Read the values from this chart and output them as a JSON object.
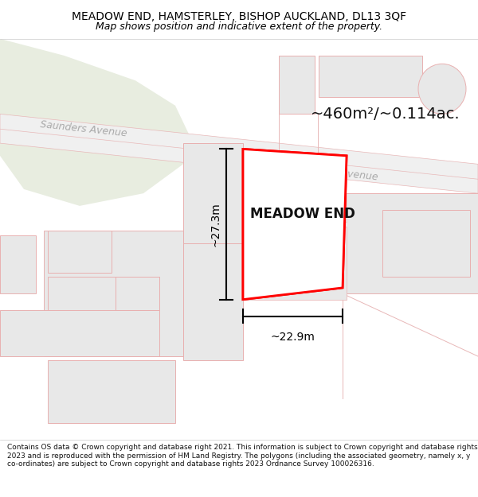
{
  "title": "MEADOW END, HAMSTERLEY, BISHOP AUCKLAND, DL13 3QF",
  "subtitle": "Map shows position and indicative extent of the property.",
  "footer": "Contains OS data © Crown copyright and database right 2021. This information is subject to Crown copyright and database rights 2023 and is reproduced with the permission of HM Land Registry. The polygons (including the associated geometry, namely x, y co-ordinates) are subject to Crown copyright and database rights 2023 Ordnance Survey 100026316.",
  "map_bg": "#f8f8f8",
  "road_color": "#eeeeee",
  "road_line_color": "#e8b8b8",
  "building_fill": "#e8e8e8",
  "building_edge": "#e8b0b0",
  "green_fill": "#e8ede0",
  "plot_color": "#ff0000",
  "area_text": "~460m²/~0.114ac.",
  "width_text": "~22.9m",
  "height_text": "~27.3m",
  "meadow_label": "MEADOW END",
  "saunders_avenue_label": "Saunders Avenue",
  "title_fontsize": 10,
  "subtitle_fontsize": 9,
  "footer_fontsize": 6.5
}
